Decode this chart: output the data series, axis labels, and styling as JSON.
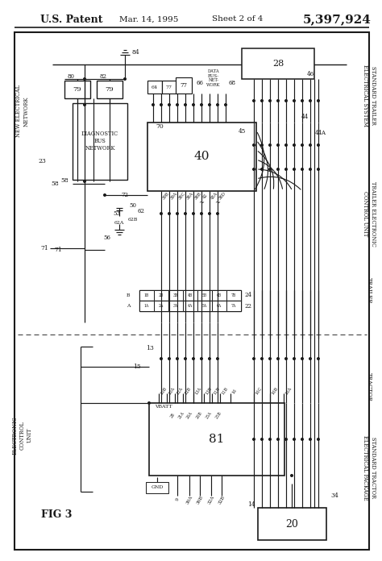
{
  "bg": "#ffffff",
  "lc": "#1a1a1a",
  "header_patent": "U.S. Patent",
  "header_date": "Mar. 14, 1995",
  "header_sheet": "Sheet 2 of 4",
  "header_num": "5,397,924",
  "fig_label": "FIG 3"
}
